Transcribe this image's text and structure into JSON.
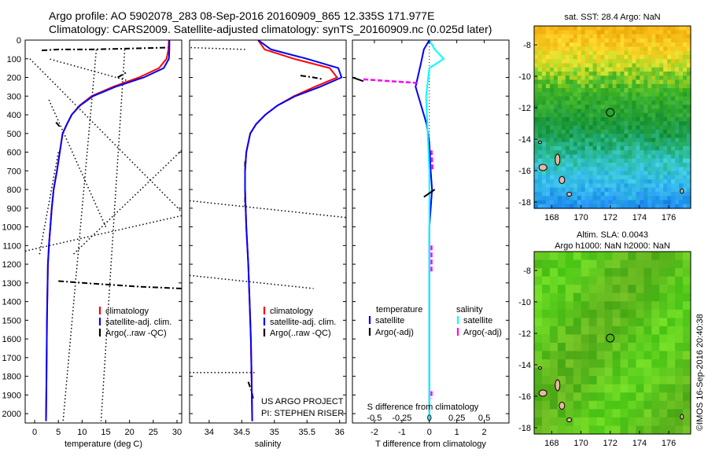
{
  "header": {
    "line1": "Argo profile: AO 5902078_283 08-Sep-2016 20160909_865 12.335S 171.977E",
    "line2": "Climatology: CARS2009. Satellite-adjusted climatology: synTS_20160909.nc (0.025d later)"
  },
  "side_label": "©IMOS 16-Sep-2016 20:40:38",
  "project": {
    "line1": "US ARGO PROJECT",
    "line2": "PI: STEPHEN RISER"
  },
  "colors": {
    "climatology": "#ff0000",
    "satellite": "#0000ff",
    "argo": "#000000",
    "sat_sal": "#00ffff",
    "argo_sal": "#ff00ff"
  },
  "chart_data": [
    {
      "type": "line",
      "name": "temperature-profile",
      "xlabel": "temperature (deg C)",
      "ylabel": "",
      "xlim": [
        -2,
        31
      ],
      "ylim": [
        2050,
        0
      ],
      "xticks": [
        0,
        5,
        10,
        15,
        20,
        25,
        30
      ],
      "yticks": [
        0,
        100,
        200,
        300,
        400,
        500,
        600,
        700,
        800,
        900,
        1000,
        1100,
        1200,
        1300,
        1400,
        1500,
        1600,
        1700,
        1800,
        1900,
        2000
      ],
      "legend": [
        "climatology",
        "satellite-adj. clim.",
        "Argo(..raw -QC)"
      ],
      "legend_loc": "lower-right",
      "series": [
        {
          "name": "climatology",
          "x": [
            28.3,
            28.2,
            27.8,
            26.2,
            22.0,
            16.5,
            12.0,
            9.5,
            7.8,
            6.8,
            5.9,
            5.3,
            4.7,
            4.0,
            3.6,
            3.3,
            3.0,
            2.8,
            2.6,
            2.5,
            2.4
          ],
          "y": [
            0,
            50,
            100,
            150,
            200,
            250,
            300,
            350,
            400,
            450,
            500,
            600,
            700,
            800,
            900,
            1000,
            1100,
            1200,
            1500,
            1800,
            2040
          ]
        },
        {
          "name": "satellite",
          "x": [
            28.4,
            28.4,
            28.3,
            27.2,
            23.0,
            17.0,
            12.3,
            9.6,
            7.8,
            6.8,
            5.9,
            5.3,
            4.7,
            4.0,
            3.6,
            3.3,
            3.0,
            2.8,
            2.6,
            2.5,
            2.4
          ],
          "y": [
            0,
            50,
            100,
            150,
            200,
            250,
            300,
            350,
            400,
            450,
            500,
            600,
            700,
            800,
            900,
            1000,
            1100,
            1200,
            1500,
            1800,
            2040
          ]
        }
      ],
      "argo_raw": [
        {
          "x": [
            1.5,
            5,
            12,
            20,
            28.3
          ],
          "y": [
            55,
            50,
            50,
            45,
            40
          ]
        },
        {
          "x": [
            17.5,
            19.5
          ],
          "y": [
            200,
            170
          ]
        },
        {
          "x": [
            4.5,
            5.5
          ],
          "y": [
            440,
            470
          ]
        },
        {
          "x": [
            5,
            10,
            16,
            22,
            31
          ],
          "y": [
            1290,
            1300,
            1310,
            1320,
            1330
          ]
        }
      ],
      "argo_dotted": [
        {
          "x": [
            -1,
            31
          ],
          "y": [
            100,
            920
          ]
        },
        {
          "x": [
            3,
            15
          ],
          "y": [
            320,
            1000
          ]
        },
        {
          "x": [
            5,
            1
          ],
          "y": [
            600,
            1150
          ]
        },
        {
          "x": [
            20,
            3
          ],
          "y": [
            220,
            100
          ]
        },
        {
          "x": [
            -2,
            31
          ],
          "y": [
            1130,
            940
          ]
        },
        {
          "x": [
            13,
            6
          ],
          "y": [
            50,
            2040
          ]
        },
        {
          "x": [
            19,
            14
          ],
          "y": [
            50,
            2040
          ]
        },
        {
          "x": [
            31,
            8
          ],
          "y": [
            590,
            1150
          ]
        }
      ]
    },
    {
      "type": "line",
      "name": "salinity-profile",
      "xlabel": "salinity",
      "ylabel": "",
      "xlim": [
        33.7,
        36.1
      ],
      "ylim": [
        2050,
        0
      ],
      "xticks": [
        34,
        34.5,
        35,
        35.5,
        36
      ],
      "legend": [
        "climatology",
        "satellite-adj. clim.",
        "Argo(..raw -QC)"
      ],
      "legend_loc": "lower-right",
      "series": [
        {
          "name": "climatology",
          "x": [
            34.75,
            34.85,
            35.3,
            35.85,
            35.96,
            35.62,
            35.3,
            35.05,
            34.86,
            34.72,
            34.63,
            34.57,
            34.55,
            34.55,
            34.56,
            34.57,
            34.6,
            34.62,
            34.64,
            34.65,
            34.66
          ],
          "y": [
            0,
            50,
            100,
            150,
            200,
            250,
            300,
            350,
            400,
            450,
            500,
            600,
            700,
            800,
            900,
            1000,
            1200,
            1400,
            1600,
            1800,
            2040
          ]
        },
        {
          "name": "satellite",
          "x": [
            34.75,
            34.95,
            35.5,
            35.98,
            36.03,
            35.7,
            35.32,
            35.05,
            34.86,
            34.72,
            34.63,
            34.57,
            34.55,
            34.55,
            34.56,
            34.57,
            34.6,
            34.62,
            34.64,
            34.65,
            34.66
          ],
          "y": [
            0,
            50,
            100,
            150,
            200,
            250,
            300,
            350,
            400,
            450,
            500,
            600,
            700,
            800,
            900,
            1000,
            1200,
            1400,
            1600,
            1800,
            2040
          ]
        }
      ],
      "argo_raw": [
        {
          "x": [
            35.4,
            35.6,
            35.75
          ],
          "y": [
            190,
            200,
            210
          ]
        },
        {
          "x": [
            34.6,
            34.65,
            34.68
          ],
          "y": [
            1830,
            1880,
            1930
          ]
        },
        {
          "x": [
            34.55,
            34.55
          ],
          "y": [
            650,
            900
          ]
        }
      ],
      "argo_dotted": [
        {
          "x": [
            34.55,
            33.7
          ],
          "y": [
            50,
            40
          ]
        },
        {
          "x": [
            33.7,
            36.1
          ],
          "y": [
            860,
            950
          ]
        },
        {
          "x": [
            33.7,
            35.6
          ],
          "y": [
            1260,
            1330
          ]
        },
        {
          "x": [
            33.7,
            34.7
          ],
          "y": [
            1780,
            1780
          ]
        }
      ]
    },
    {
      "type": "line",
      "name": "difference-from-climatology",
      "xlabel": "T difference from climatology",
      "x2label": "S difference from climatology",
      "xlim": [
        -2.8,
        2.9
      ],
      "x2lim": [
        -0.7,
        0.725
      ],
      "ylim": [
        2050,
        0
      ],
      "xticks": [
        -2,
        -1,
        0,
        1,
        2
      ],
      "x2ticks": [
        -0.5,
        -0.25,
        0,
        0.25,
        0.5
      ],
      "legend": {
        "temperature": [
          "satellite",
          "Argo(-adj)"
        ],
        "salinity": [
          "satellite",
          "Argo(-adj)"
        ]
      },
      "legend_titles": [
        "temperature",
        "salinity"
      ],
      "series": [
        {
          "name": "temperature satellite",
          "x": [
            0,
            -0.2,
            -0.3,
            -0.5,
            -0.3,
            -0.1,
            0.0,
            0.05,
            0.1,
            0.0,
            0.0
          ],
          "y": [
            0,
            50,
            120,
            250,
            350,
            450,
            550,
            700,
            800,
            1000,
            2040
          ]
        },
        {
          "name": "salinity satellite",
          "x2": [
            0,
            0.05,
            0.13,
            0.0,
            -0.03,
            0.0,
            0.0,
            0.0
          ],
          "y": [
            0,
            50,
            100,
            150,
            300,
            700,
            1000,
            2040
          ]
        }
      ],
      "argo_raw": [
        {
          "x": [
            -2.8,
            -2.4
          ],
          "y": [
            200,
            220
          ]
        },
        {
          "x": [
            -0.2,
            0.2
          ],
          "y": [
            840,
            800
          ]
        }
      ],
      "argo_sal": [
        {
          "x2": [
            -0.6,
            -0.1
          ],
          "y2": [
            210,
            230
          ]
        },
        {
          "x2": [
            0.02,
            0.03
          ],
          "y2": [
            590,
            700
          ]
        },
        {
          "x2": [
            0.02,
            0.02
          ],
          "y2": [
            1100,
            1250
          ]
        },
        {
          "x2": [
            0.02,
            0.02
          ],
          "y2": [
            1880,
            1920
          ]
        }
      ]
    },
    {
      "type": "heatmap",
      "name": "sst-map",
      "title": "sat. SST: 28.4   Argo: NaN",
      "xlim": [
        166.8,
        177.5
      ],
      "ylim": [
        -18.4,
        -6.8
      ],
      "xticks": [
        168,
        170,
        172,
        174,
        176
      ],
      "yticks": [
        -8,
        -10,
        -12,
        -14,
        -16,
        -18
      ],
      "marker": {
        "lon": 172.0,
        "lat": -12.3
      }
    },
    {
      "type": "heatmap",
      "name": "sla-map",
      "title_line1": "Altim. SLA: 0.0043",
      "title_line2": "Argo h1000: NaN h2000: NaN",
      "xlim": [
        166.8,
        177.5
      ],
      "ylim": [
        -18.4,
        -6.8
      ],
      "xticks": [
        168,
        170,
        172,
        174,
        176
      ],
      "yticks": [
        -8,
        -10,
        -12,
        -14,
        -16,
        -18
      ],
      "marker": {
        "lon": 172.0,
        "lat": -12.3
      }
    }
  ]
}
